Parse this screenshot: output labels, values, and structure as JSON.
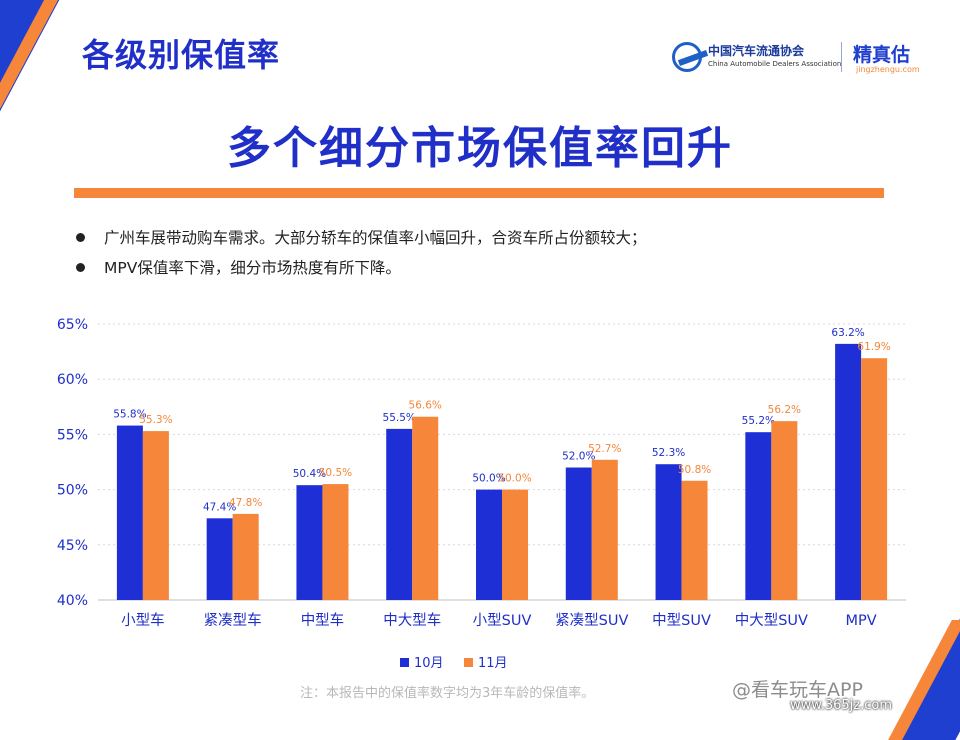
{
  "header": {
    "section_title": "各级别保值率",
    "logo_cada_cn": "中国汽车流通协会",
    "logo_cada_en": "China Automobile Dealers Association",
    "logo_jzg_cn": "精真估",
    "logo_jzg_en": "jingzhengu.com"
  },
  "headline": "多个细分市场保值率回升",
  "bullets": [
    "广州车展带动购车需求。大部分轿车的保值率小幅回升，合资车所占份额较大；",
    "MPV保值率下滑，细分市场热度有所下降。"
  ],
  "chart_data": {
    "type": "bar",
    "categories": [
      "小型车",
      "紧凑型车",
      "中型车",
      "中大型车",
      "小型SUV",
      "紧凑型SUV",
      "中型SUV",
      "中大型SUV",
      "MPV"
    ],
    "series": [
      {
        "name": "10月",
        "color": "#1f2fd6",
        "values": [
          55.8,
          47.4,
          50.4,
          55.5,
          50.0,
          52.0,
          52.3,
          55.2,
          63.2
        ],
        "labels": [
          "55.8%",
          "47.4%",
          "50.4%",
          "55.5%",
          "50.0%",
          "52.0%",
          "52.3%",
          "55.2%",
          "63.2%"
        ]
      },
      {
        "name": "11月",
        "color": "#f5863a",
        "values": [
          55.3,
          47.8,
          50.5,
          56.6,
          50.0,
          52.7,
          50.8,
          56.2,
          61.9
        ],
        "labels": [
          "55.3%",
          "47.8%",
          "50.5%",
          "56.6%",
          "50.0%",
          "52.7%",
          "50.8%",
          "56.2%",
          "61.9%"
        ]
      }
    ],
    "ylim": [
      40,
      65
    ],
    "yticks": [
      40,
      45,
      50,
      55,
      60,
      65
    ],
    "ytick_labels": [
      "40%",
      "45%",
      "50%",
      "55%",
      "60%",
      "65%"
    ],
    "grid": true,
    "legend_position": "bottom"
  },
  "footnote": "注：本报告中的保值率数字均为3年车龄的保值率。",
  "watermark": {
    "app": "@看车玩车APP",
    "site": "www.365jz.com"
  }
}
